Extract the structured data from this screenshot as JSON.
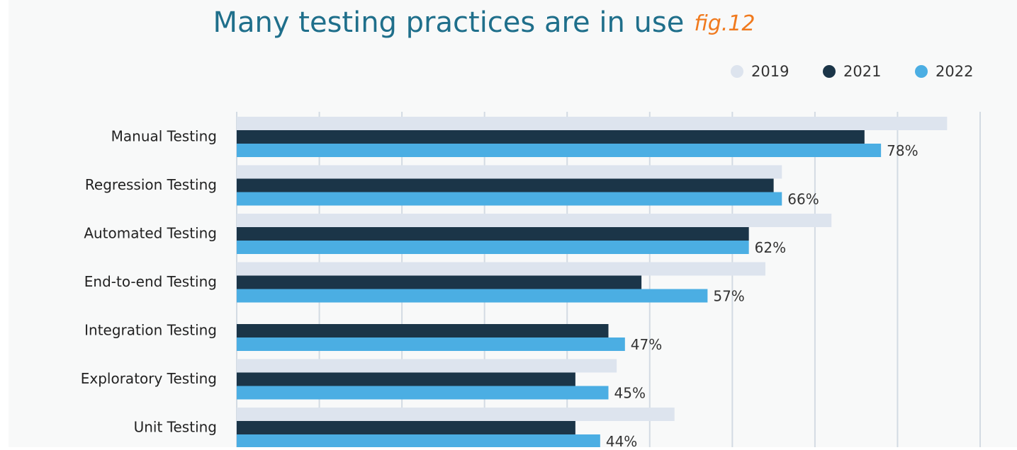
{
  "chart_data": {
    "type": "hbar",
    "title": "Many testing practices are in use",
    "annotation": "fig.12",
    "categories": [
      "Manual Testing",
      "Regression Testing",
      "Automated Testing",
      "End-to-end Testing",
      "Integration Testing",
      "Exploratory Testing",
      "Unit Testing"
    ],
    "series": [
      {
        "name": "2019",
        "color": "#dde4ee",
        "values": [
          86,
          66,
          72,
          64,
          null,
          46,
          53
        ]
      },
      {
        "name": "2021",
        "color": "#1b3548",
        "values": [
          76,
          65,
          62,
          49,
          45,
          41,
          41
        ]
      },
      {
        "name": "2022",
        "color": "#4baee3",
        "values": [
          78,
          66,
          62,
          57,
          47,
          45,
          44
        ],
        "value_labels": [
          "78%",
          "66%",
          "62%",
          "57%",
          "47%",
          "45%",
          "44%"
        ]
      }
    ],
    "xlim": [
      0,
      90
    ],
    "xticks": [
      0,
      10,
      20,
      30,
      40,
      50,
      60,
      70,
      80,
      90
    ],
    "grid": true,
    "legend": "top-right"
  }
}
